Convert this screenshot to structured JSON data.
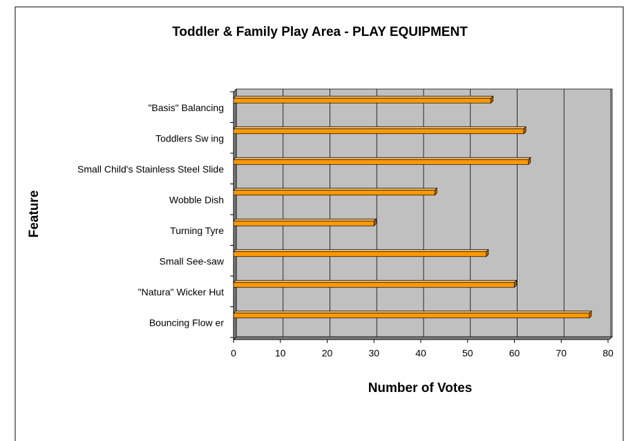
{
  "chart_data": {
    "type": "bar",
    "orientation": "horizontal",
    "title": "Toddler & Family Play Area - PLAY EQUIPMENT",
    "x_label": "Number of Votes",
    "y_label": "Feature",
    "categories": [
      "\"Basis\" Balancing",
      "Toddlers Sw ing",
      "Small Child's Stainless Steel Slide",
      "Wobble Dish",
      "Turning Tyre",
      "Small See-saw",
      "\"Natura\" Wicker Hut",
      "Bouncing Flow er"
    ],
    "values": [
      55,
      62,
      63,
      43,
      30,
      54,
      60,
      76
    ],
    "color": "#ff9900",
    "xlim": [
      0,
      80
    ],
    "xticks": [
      0,
      10,
      20,
      30,
      40,
      50,
      60,
      70,
      80
    ],
    "grid": true
  }
}
